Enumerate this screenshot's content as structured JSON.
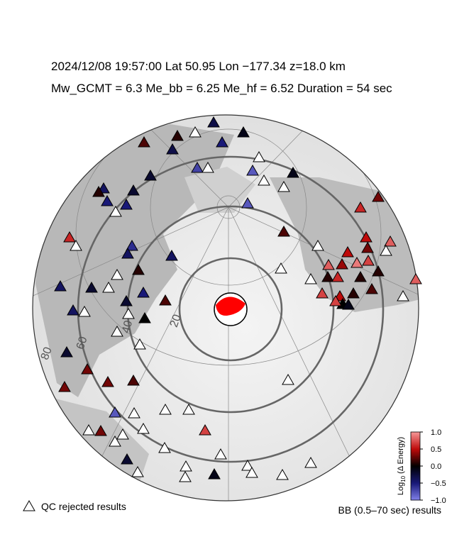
{
  "header": {
    "line1": "2024/12/08  19:57:00   Lat 50.95    Lon −177.34   z=18.0 km",
    "line2": "Mw_GCMT = 6.3   Me_bb = 6.25   Me_hf = 6.52   Duration = 54 sec"
  },
  "distance_rings": [
    "20",
    "40",
    "60",
    "80"
  ],
  "stations": [
    -0.3,
    -0.1,
    0.1,
    null,
    0.2,
    -0.3,
    -0.5,
    -0.7,
    null,
    null,
    -0.8,
    -0.1,
    null,
    null,
    -0.2,
    -0.2,
    -0.4,
    0.1,
    -0.5,
    -0.5,
    null,
    -0.8,
    0.3,
    0.6,
    0.2,
    0.5,
    0.6,
    null,
    -0.6,
    -0.4,
    -0.4,
    null,
    0.5,
    0.8,
    0.3,
    null,
    0.7,
    0.8,
    0.4,
    0.9,
    null,
    0.1,
    null,
    null,
    0.1,
    0.6,
    0.1,
    0.1,
    0.8,
    -0.5,
    -0.2,
    -0.4,
    null,
    0.2,
    -0.2,
    -0.4,
    null,
    0.7,
    0.5,
    0.1,
    0.2,
    0.0,
    -0.1,
    0.7,
    null,
    null,
    0.0,
    null,
    null,
    -0.2,
    0.3,
    0.3,
    0.2,
    0.3,
    null,
    null,
    null,
    -0.8,
    null,
    0.7,
    0.3,
    null,
    null,
    null,
    null,
    null,
    -0.2,
    null,
    null,
    null,
    null,
    null,
    null,
    -0.1,
    null,
    null
  ],
  "colorbar": {
    "label": "Log",
    "label_sub": "10",
    "label_rest": " (Δ Energy)",
    "lim": [
      -1,
      1
    ],
    "ticks": [
      {
        "value": 1,
        "label": "1.0"
      },
      {
        "value": 0.5,
        "label": "0.5"
      },
      {
        "value": 0,
        "label": "0.0"
      },
      {
        "value": -0.5,
        "label": "−0.5"
      },
      {
        "value": -1,
        "label": "−1.0"
      }
    ]
  },
  "legend": {
    "qc": "QC rejected results",
    "bb": "BB (0.5–70 sec) results"
  }
}
